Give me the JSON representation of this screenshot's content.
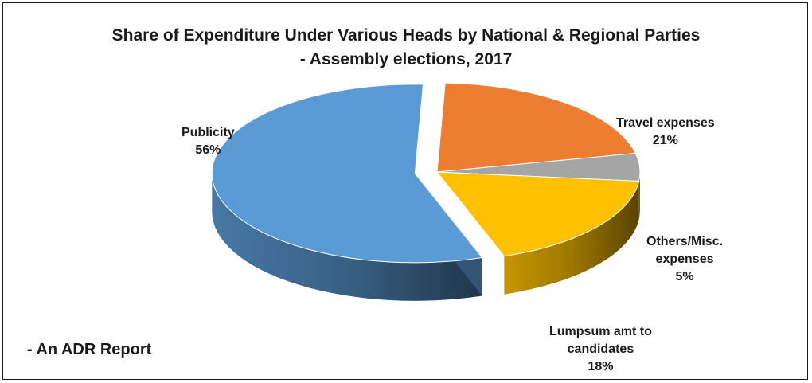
{
  "title_line1": "Share of Expenditure Under Various Heads by National & Regional Parties",
  "title_line2": "- Assembly elections, 2017",
  "footer": "- An ADR Report",
  "chart_data": {
    "type": "pie",
    "title": "Share of Expenditure Under Various Heads by National & Regional Parties - Assembly elections, 2017",
    "slices": [
      {
        "label_lines": [
          "Travel expenses"
        ],
        "pct_label": "21%",
        "value": 21,
        "color": "#ED7D31"
      },
      {
        "label_lines": [
          "Others/Misc.",
          "expenses"
        ],
        "pct_label": "5%",
        "value": 5,
        "color": "#A5A5A5"
      },
      {
        "label_lines": [
          "Lumpsum amt to",
          "candidates"
        ],
        "pct_label": "18%",
        "value": 18,
        "color": "#FFC000"
      },
      {
        "label_lines": [
          "Publicity"
        ],
        "pct_label": "56%",
        "value": 56,
        "color": "#5B9BD5"
      }
    ]
  }
}
